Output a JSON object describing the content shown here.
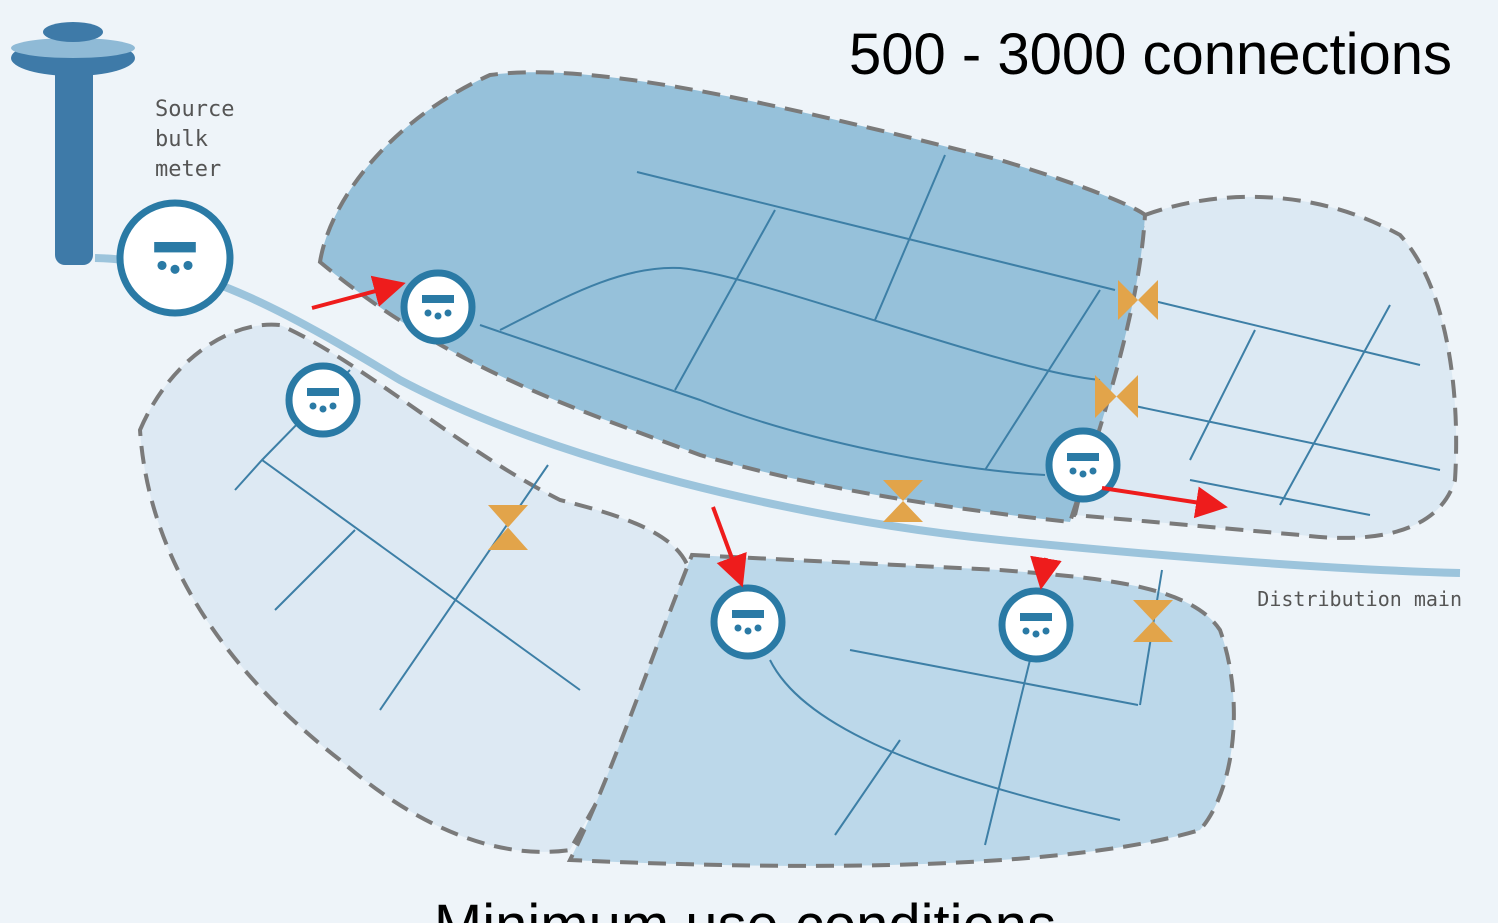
{
  "header": {
    "title": "500 - 3000 connections"
  },
  "labels": {
    "source": [
      "Source",
      "bulk",
      "meter"
    ],
    "main": "Distribution main"
  },
  "footer": {
    "caption": "Minimum use conditions"
  }
}
